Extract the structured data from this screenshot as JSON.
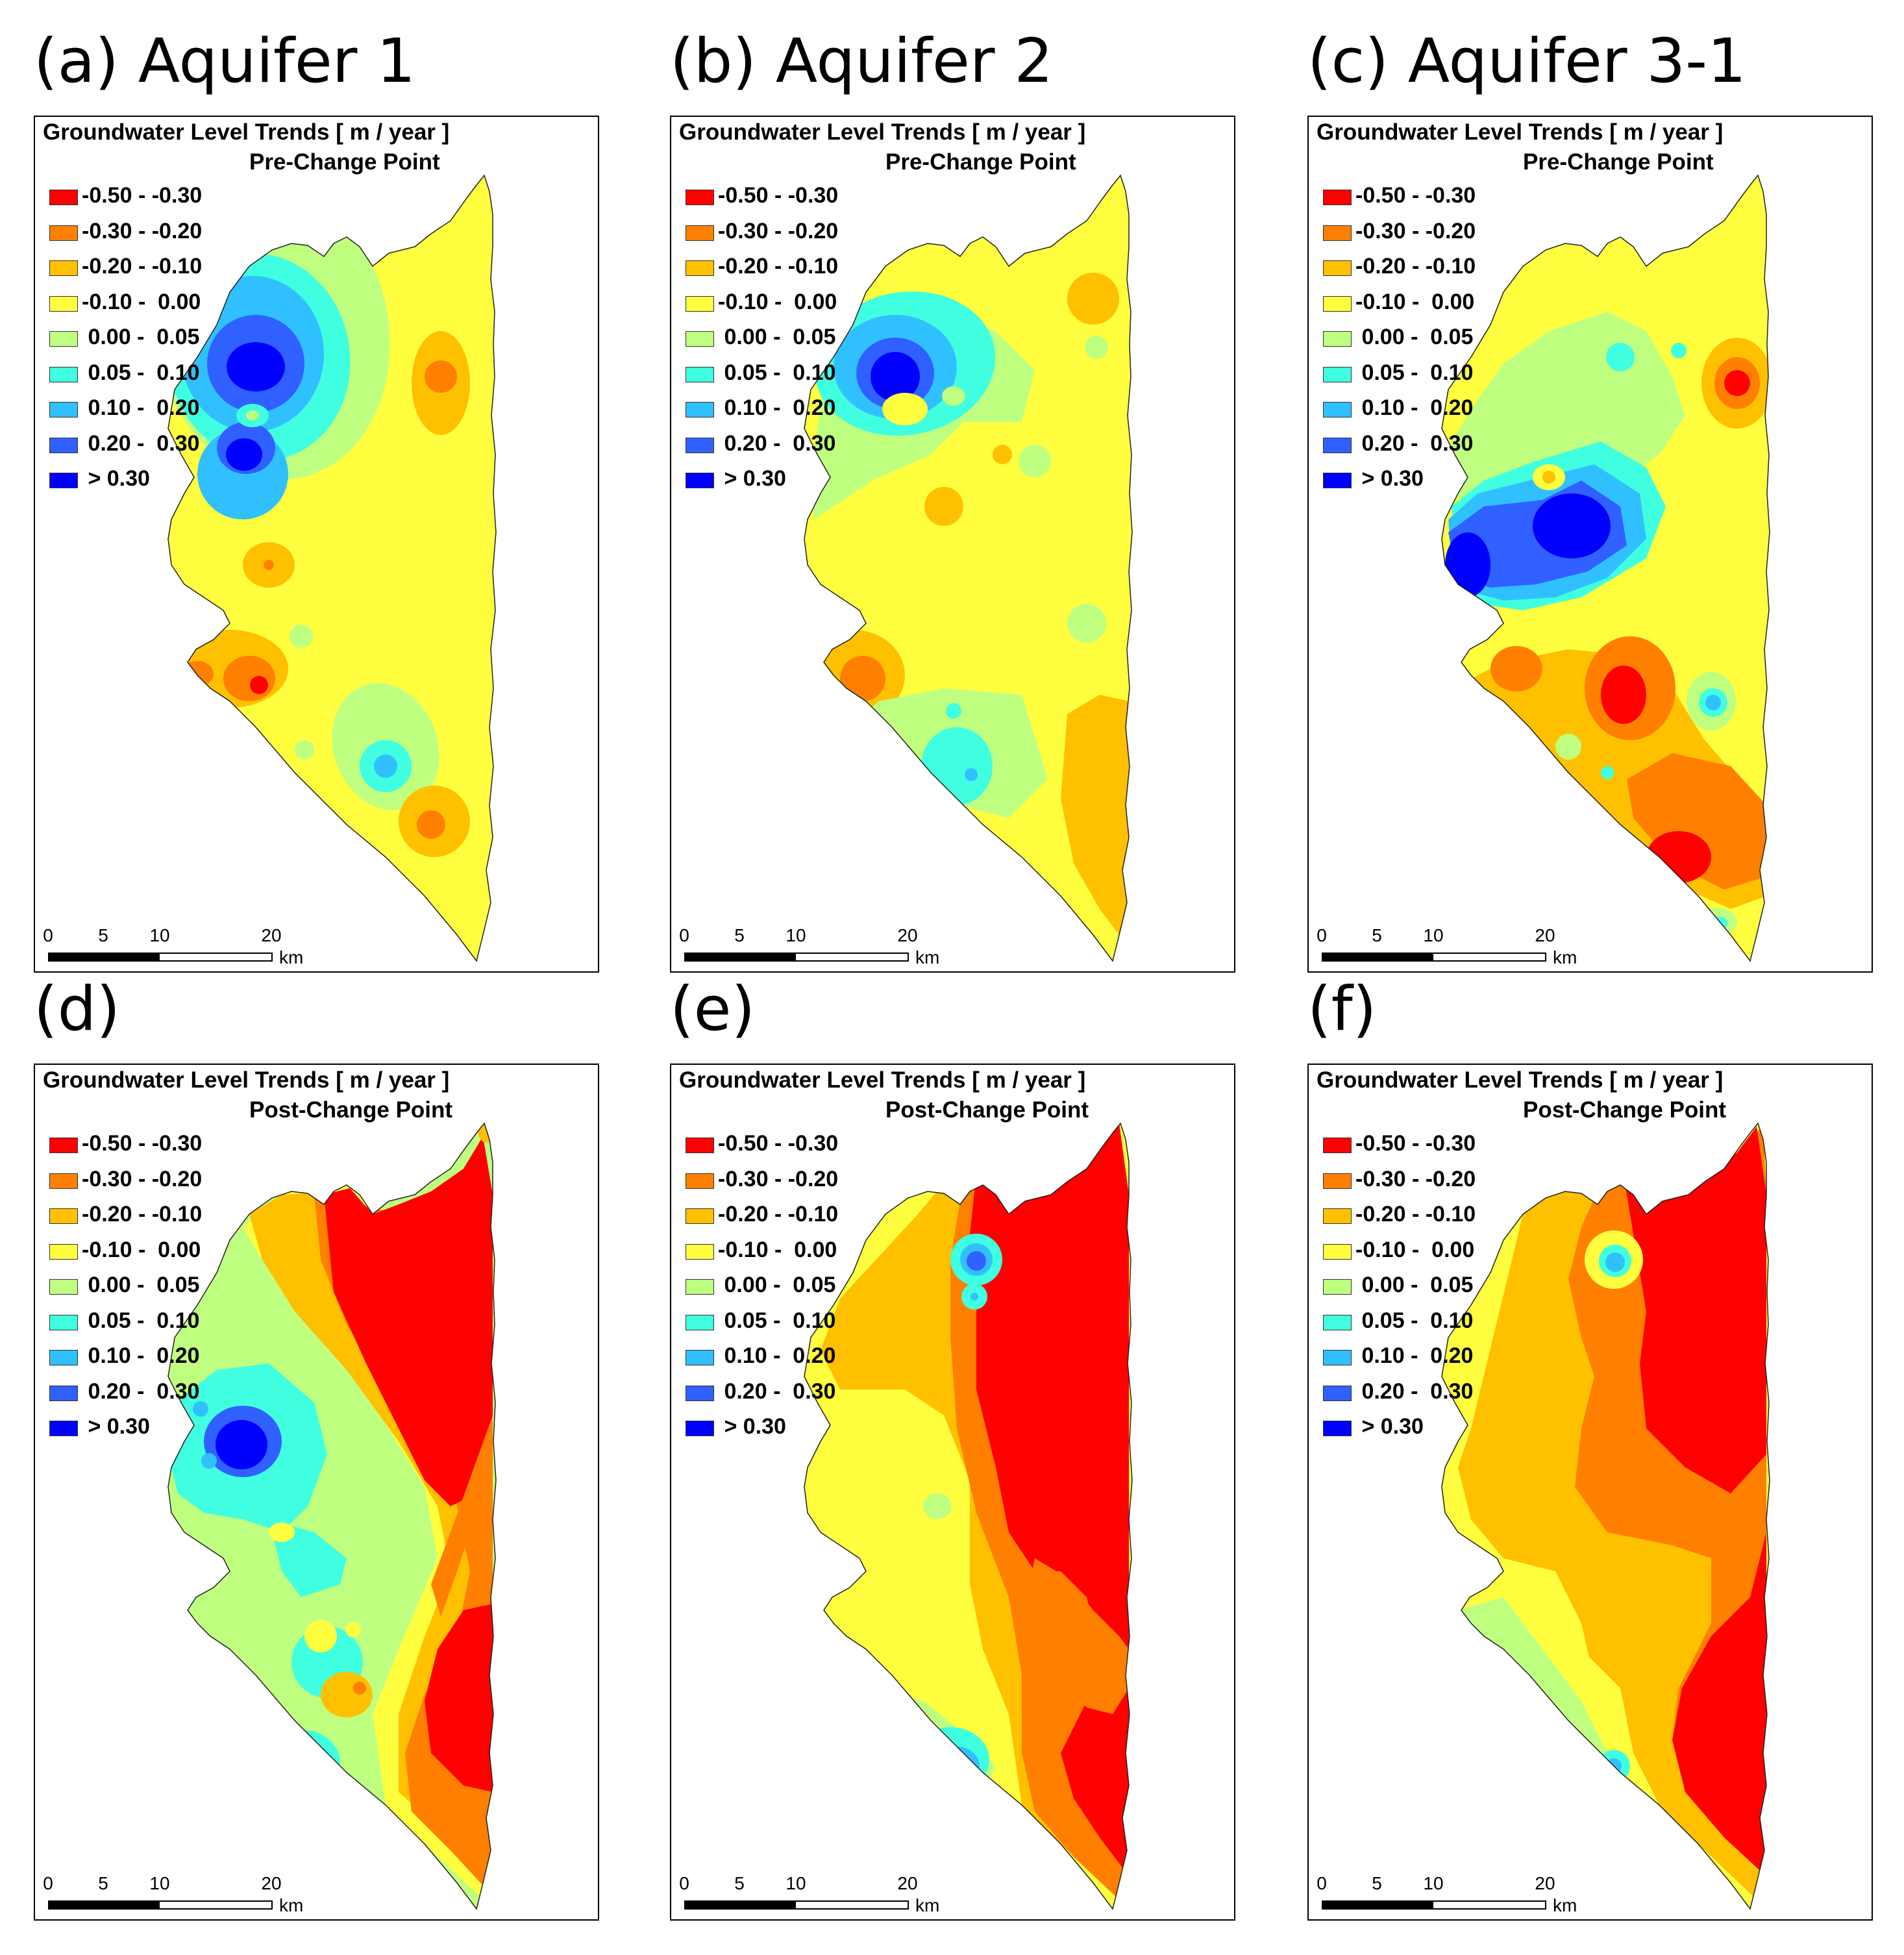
{
  "legend": {
    "title": "Groundwater Level Trends [ m / year ]",
    "classes": [
      {
        "label": "-0.50 - -0.30",
        "color": "#ff0000"
      },
      {
        "label": "-0.30 - -0.20",
        "color": "#ff7f00"
      },
      {
        "label": "-0.20 - -0.10",
        "color": "#ffc000"
      },
      {
        "label": "-0.10 -  0.00",
        "color": "#ffff40"
      },
      {
        "label": " 0.00 -  0.05",
        "color": "#bfff80"
      },
      {
        "label": " 0.05 -  0.10",
        "color": "#40ffe0"
      },
      {
        "label": " 0.10 -  0.20",
        "color": "#30c0ff"
      },
      {
        "label": " 0.20 -  0.30",
        "color": "#3060ff"
      },
      {
        "label": " > 0.30",
        "color": "#0000ff"
      }
    ]
  },
  "scalebar": {
    "ticks": [
      "0",
      "5",
      "10",
      "20"
    ],
    "unit": "km"
  },
  "panels": [
    {
      "label": "(a) Aquifer 1",
      "period": "Pre-Change Point",
      "scheme": "a"
    },
    {
      "label": "(b) Aquifer 2",
      "period": "Pre-Change Point",
      "scheme": "b"
    },
    {
      "label": "(c) Aquifer 3-1",
      "period": "Pre-Change Point",
      "scheme": "c"
    },
    {
      "label": "(d)",
      "period": "Post-Change Point",
      "scheme": "d"
    },
    {
      "label": "(e)",
      "period": "Post-Change Point",
      "scheme": "e"
    },
    {
      "label": "(f)",
      "period": "Post-Change Point",
      "scheme": "f"
    }
  ]
}
